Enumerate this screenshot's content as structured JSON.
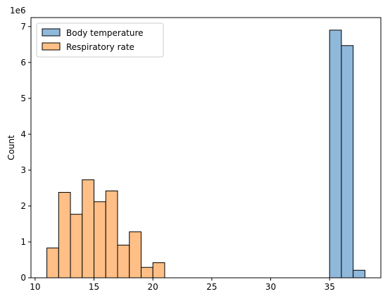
{
  "chart_data": {
    "type": "bar",
    "title": "",
    "xlabel": "",
    "ylabel": "Count",
    "y_offset_label": "1e6",
    "y_multiplier": 1000000,
    "xlim": [
      9.65,
      39.35
    ],
    "ylim": [
      0,
      7.25
    ],
    "xticks": [
      10,
      15,
      20,
      25,
      30,
      35
    ],
    "yticks": [
      0,
      1,
      2,
      3,
      4,
      5,
      6,
      7
    ],
    "grid": false,
    "legend_position": "upper-left",
    "series": [
      {
        "name": "Body temperature",
        "color": "#8fb8db",
        "edge_color": "#000000",
        "bins": [
          {
            "x0": 35.0,
            "x1": 36.0,
            "value": 6.9
          },
          {
            "x0": 36.0,
            "x1": 37.0,
            "value": 6.47
          },
          {
            "x0": 37.0,
            "x1": 38.0,
            "value": 0.21
          }
        ]
      },
      {
        "name": "Respiratory rate",
        "color": "#ffbf86",
        "edge_color": "#000000",
        "bins": [
          {
            "x0": 11.0,
            "x1": 12.0,
            "value": 0.83
          },
          {
            "x0": 12.0,
            "x1": 13.0,
            "value": 2.38
          },
          {
            "x0": 13.0,
            "x1": 14.0,
            "value": 1.77
          },
          {
            "x0": 14.0,
            "x1": 15.0,
            "value": 2.73
          },
          {
            "x0": 15.0,
            "x1": 16.0,
            "value": 2.12
          },
          {
            "x0": 16.0,
            "x1": 17.0,
            "value": 2.42
          },
          {
            "x0": 17.0,
            "x1": 18.0,
            "value": 0.91
          },
          {
            "x0": 18.0,
            "x1": 19.0,
            "value": 1.28
          },
          {
            "x0": 19.0,
            "x1": 20.0,
            "value": 0.29
          },
          {
            "x0": 20.0,
            "x1": 21.0,
            "value": 0.42
          }
        ]
      }
    ]
  }
}
